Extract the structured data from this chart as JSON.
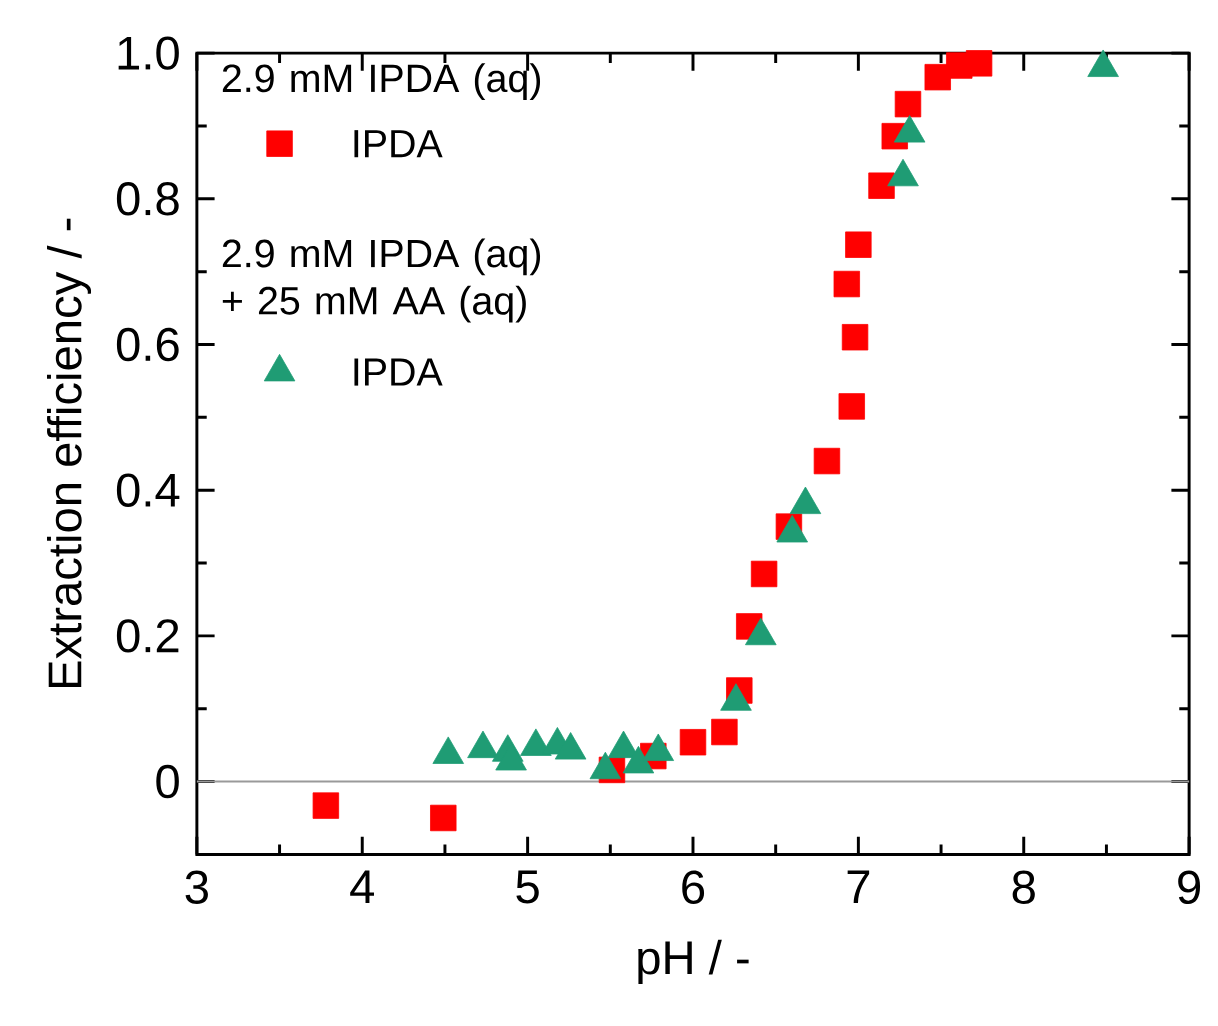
{
  "chart_data": {
    "type": "scatter",
    "xlabel": "pH / -",
    "ylabel": "Extraction efficiency / -",
    "xlim": [
      3,
      9
    ],
    "ylim": [
      -0.1,
      1.0
    ],
    "xticks": [
      3,
      4,
      5,
      6,
      7,
      8,
      9
    ],
    "yticks": [
      0,
      0.2,
      0.4,
      0.6,
      0.8,
      {
        "value": 1.0,
        "label": "1.0"
      }
    ],
    "legend": "top left",
    "grid": false,
    "annotations": [
      "2.9 mM IPDA (aq)",
      "2.9 mM IPDA (aq)\n+ 25 mM AA (aq)"
    ],
    "ref_lines": [
      {
        "axis": "y",
        "value": 0,
        "color": "#9a9a9a"
      }
    ],
    "series": [
      {
        "name": "IPDA",
        "color": "#ff0000",
        "marker": "square",
        "x": [
          3.78,
          4.49,
          5.51,
          5.76,
          6.0,
          6.19,
          6.28,
          6.34,
          6.43,
          6.58,
          6.81,
          6.96,
          6.98,
          6.93,
          7.0,
          7.14,
          7.22,
          7.3,
          7.48,
          7.61,
          7.73
        ],
        "values": [
          -0.033,
          -0.05,
          0.016,
          0.035,
          0.054,
          0.068,
          0.125,
          0.213,
          0.285,
          0.35,
          0.44,
          0.515,
          0.61,
          0.683,
          0.737,
          0.818,
          0.886,
          0.93,
          0.967,
          0.983,
          0.986
        ]
      },
      {
        "name": "IPDA",
        "color": "#1f9c74",
        "marker": "triangle",
        "x": [
          4.52,
          4.73,
          4.88,
          4.9,
          5.05,
          5.18,
          5.26,
          5.47,
          5.58,
          5.67,
          5.79,
          6.26,
          6.41,
          6.6,
          6.68,
          7.27,
          7.31,
          8.48
        ],
        "values": [
          0.037,
          0.045,
          0.04,
          0.028,
          0.048,
          0.05,
          0.043,
          0.016,
          0.045,
          0.024,
          0.041,
          0.11,
          0.2,
          0.341,
          0.38,
          0.83,
          0.89,
          0.98
        ]
      }
    ]
  }
}
